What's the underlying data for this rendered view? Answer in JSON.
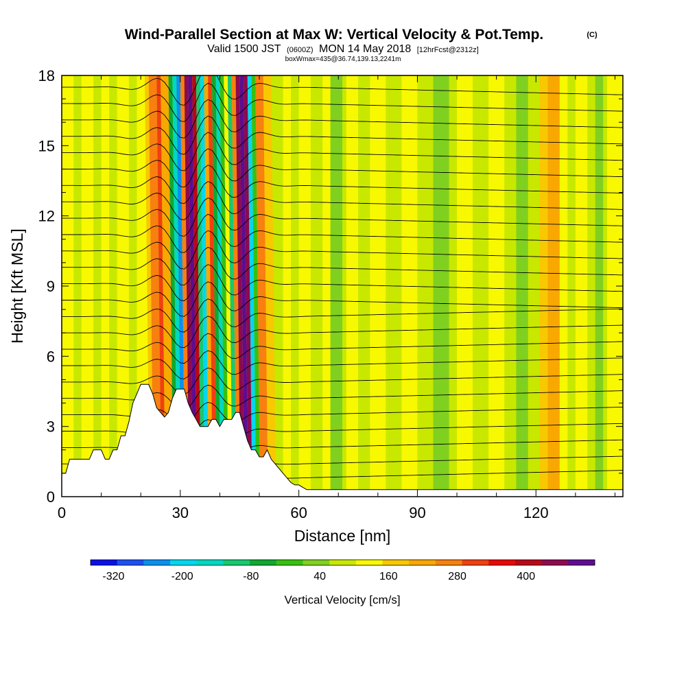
{
  "title": {
    "main": "Wind-Parallel Section at Max W: Vertical Velocity & Pot.Temp.",
    "copyright": "(C)",
    "valid_prefix": "Valid 1500 JST",
    "utc": "(0600Z)",
    "valid_date": "MON 14 May 2018",
    "forecast": "[12hrFcst@2312z]",
    "box": "boxWmax=435@36.74,139.13,2241m"
  },
  "chart_data": {
    "type": "heatmap",
    "xlabel": "Distance [nm]",
    "ylabel": "Height [Kft MSL]",
    "xlim": [
      0,
      142
    ],
    "ylim": [
      0,
      18
    ],
    "x_ticks": [
      0,
      30,
      60,
      90,
      120
    ],
    "y_ticks": [
      0,
      3,
      6,
      9,
      12,
      15,
      18
    ],
    "colorbar": {
      "title": "Vertical Velocity [cm/s]",
      "min": -360,
      "max": 520,
      "step": 40,
      "tick_labels": [
        -320,
        -200,
        -80,
        40,
        160,
        280,
        400
      ],
      "colors": [
        "#0a10e6",
        "#1a50f0",
        "#0a90f0",
        "#00d8f0",
        "#00d8c0",
        "#18c870",
        "#10a830",
        "#38c010",
        "#80d020",
        "#c8e800",
        "#f8f800",
        "#f8c800",
        "#f8a800",
        "#f88010",
        "#f04010",
        "#e80808",
        "#b80818",
        "#8c0a50",
        "#5e0c90"
      ]
    },
    "terrain_kft": [
      [
        0,
        1.0
      ],
      [
        1,
        1.0
      ],
      [
        2,
        1.6
      ],
      [
        7,
        1.6
      ],
      [
        8,
        2.0
      ],
      [
        10,
        2.0
      ],
      [
        11,
        1.6
      ],
      [
        12,
        1.6
      ],
      [
        13,
        2.0
      ],
      [
        14,
        2.0
      ],
      [
        15,
        2.6
      ],
      [
        16,
        2.6
      ],
      [
        17,
        3.2
      ],
      [
        18,
        4.0
      ],
      [
        19,
        4.4
      ],
      [
        20,
        4.8
      ],
      [
        22,
        4.8
      ],
      [
        23,
        4.4
      ],
      [
        24,
        3.8
      ],
      [
        25,
        3.6
      ],
      [
        26,
        3.4
      ],
      [
        27,
        3.6
      ],
      [
        28,
        4.2
      ],
      [
        29,
        4.6
      ],
      [
        31,
        4.6
      ],
      [
        32,
        4.0
      ],
      [
        33,
        3.6
      ],
      [
        34,
        3.3
      ],
      [
        35,
        3.0
      ],
      [
        37,
        3.0
      ],
      [
        38,
        3.3
      ],
      [
        39,
        3.3
      ],
      [
        40,
        3.0
      ],
      [
        41,
        3.3
      ],
      [
        43,
        3.3
      ],
      [
        44,
        3.6
      ],
      [
        45,
        3.6
      ],
      [
        46,
        3.0
      ],
      [
        47,
        2.4
      ],
      [
        48,
        2.0
      ],
      [
        49,
        2.0
      ],
      [
        50,
        1.7
      ],
      [
        51,
        1.7
      ],
      [
        52,
        2.0
      ],
      [
        53,
        1.6
      ],
      [
        54,
        1.4
      ],
      [
        55,
        1.2
      ],
      [
        56,
        1.0
      ],
      [
        57,
        0.8
      ],
      [
        58,
        0.6
      ],
      [
        59,
        0.5
      ],
      [
        60,
        0.5
      ],
      [
        61,
        0.4
      ],
      [
        62,
        0.3
      ],
      [
        142,
        0.3
      ]
    ],
    "base_value": 0,
    "bands": [
      {
        "x0": 0,
        "x1": 3,
        "value": 40
      },
      {
        "x0": 5,
        "x1": 8,
        "value": 40
      },
      {
        "x0": 10,
        "x1": 12,
        "value": 40
      },
      {
        "x0": 14,
        "x1": 17,
        "value": 40
      },
      {
        "x0": 19,
        "x1": 22,
        "value": 40
      },
      {
        "x0": 21,
        "x1": 23,
        "value": 100
      },
      {
        "x0": 22,
        "x1": 24,
        "value": 160
      },
      {
        "x0": 24,
        "x1": 26,
        "value": 200
      },
      {
        "x0": 25,
        "x1": 27,
        "value": 120
      },
      {
        "x0": 27,
        "x1": 28,
        "value": -120
      },
      {
        "x0": 28,
        "x1": 29,
        "value": -200
      },
      {
        "x0": 29,
        "x1": 30,
        "value": -280
      },
      {
        "x0": 30,
        "x1": 31,
        "value": 160
      },
      {
        "x0": 31,
        "x1": 32,
        "value": 320
      },
      {
        "x0": 32,
        "x1": 33,
        "value": 440
      },
      {
        "x0": 33,
        "x1": 34,
        "value": 280
      },
      {
        "x0": 34,
        "x1": 35,
        "value": -160
      },
      {
        "x0": 35,
        "x1": 36,
        "value": -240
      },
      {
        "x0": 36,
        "x1": 37,
        "value": 120
      },
      {
        "x0": 37,
        "x1": 38,
        "value": 200
      },
      {
        "x0": 38,
        "x1": 39,
        "value": -120
      },
      {
        "x0": 39,
        "x1": 40,
        "value": -200
      },
      {
        "x0": 40,
        "x1": 41,
        "value": -80
      },
      {
        "x0": 41,
        "x1": 42,
        "value": 40
      },
      {
        "x0": 42,
        "x1": 43,
        "value": -160
      },
      {
        "x0": 43,
        "x1": 44,
        "value": 160
      },
      {
        "x0": 44,
        "x1": 45,
        "value": 320
      },
      {
        "x0": 45,
        "x1": 46,
        "value": 440
      },
      {
        "x0": 46,
        "x1": 47,
        "value": 320
      },
      {
        "x0": 47,
        "x1": 48,
        "value": -240
      },
      {
        "x0": 48,
        "x1": 49,
        "value": -80
      },
      {
        "x0": 49,
        "x1": 51,
        "value": 160
      },
      {
        "x0": 51,
        "x1": 53,
        "value": 80
      },
      {
        "x0": 56,
        "x1": 58,
        "value": 40
      },
      {
        "x0": 60,
        "x1": 63,
        "value": 40
      },
      {
        "x0": 66,
        "x1": 68,
        "value": 40
      },
      {
        "x0": 68,
        "x1": 71,
        "value": -40
      },
      {
        "x0": 72,
        "x1": 75,
        "value": 40
      },
      {
        "x0": 78,
        "x1": 82,
        "value": 40
      },
      {
        "x0": 86,
        "x1": 90,
        "value": 40
      },
      {
        "x0": 94,
        "x1": 98,
        "value": -40
      },
      {
        "x0": 100,
        "x1": 104,
        "value": 40
      },
      {
        "x0": 108,
        "x1": 112,
        "value": 40
      },
      {
        "x0": 115,
        "x1": 118,
        "value": -40
      },
      {
        "x0": 121,
        "x1": 123,
        "value": 80
      },
      {
        "x0": 123,
        "x1": 126,
        "value": 120
      },
      {
        "x0": 126,
        "x1": 128,
        "value": 40
      },
      {
        "x0": 130,
        "x1": 133,
        "value": 40
      },
      {
        "x0": 135,
        "x1": 137,
        "value": -40
      },
      {
        "x0": 138,
        "x1": 142,
        "value": 40
      }
    ],
    "isentrope_levels_kft": [
      0.8,
      1.4,
      2.1,
      2.8,
      3.5,
      4.2,
      4.9,
      5.6,
      6.3,
      7.0,
      7.7,
      8.4,
      9.1,
      9.8,
      10.5,
      11.2,
      11.9,
      12.6,
      13.3,
      14.0,
      14.7,
      15.4,
      16.1,
      16.8,
      17.5
    ]
  }
}
